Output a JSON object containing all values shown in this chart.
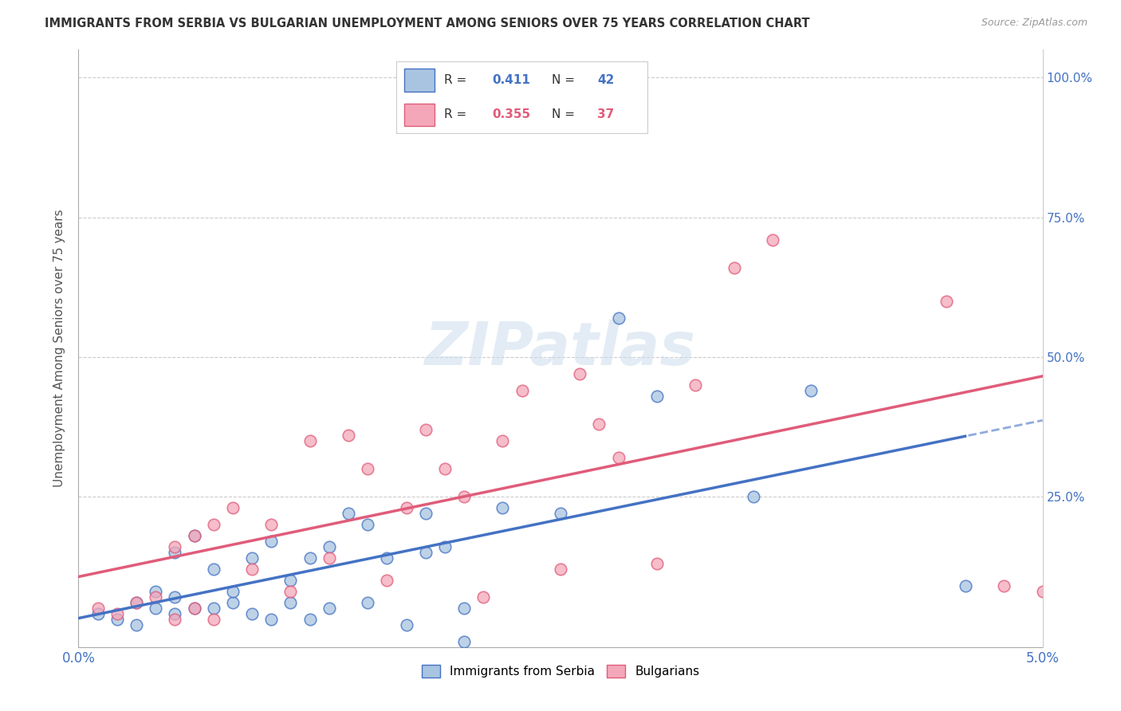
{
  "title": "IMMIGRANTS FROM SERBIA VS BULGARIAN UNEMPLOYMENT AMONG SENIORS OVER 75 YEARS CORRELATION CHART",
  "source": "Source: ZipAtlas.com",
  "ylabel": "Unemployment Among Seniors over 75 years",
  "xlim": [
    0.0,
    0.05
  ],
  "ylim": [
    -0.02,
    1.05
  ],
  "ytick_vals": [
    0.0,
    0.25,
    0.5,
    0.75,
    1.0
  ],
  "ytick_labels": [
    "",
    "25.0%",
    "50.0%",
    "75.0%",
    "100.0%"
  ],
  "xtick_vals": [
    0.0,
    0.01,
    0.02,
    0.03,
    0.04,
    0.05
  ],
  "xtick_labels": [
    "0.0%",
    "",
    "",
    "",
    "",
    "5.0%"
  ],
  "legend_r1": "0.411",
  "legend_n1": "42",
  "legend_r2": "0.355",
  "legend_n2": "37",
  "watermark": "ZIPatlas",
  "serbia_color": "#a8c4e0",
  "serbian_line_color": "#4472c4",
  "bulgarian_color": "#f4a7b9",
  "bulgarian_line_color": "#e05c7a",
  "serbia_scatter_x": [
    0.001,
    0.002,
    0.003,
    0.003,
    0.004,
    0.004,
    0.005,
    0.005,
    0.005,
    0.006,
    0.006,
    0.007,
    0.007,
    0.008,
    0.008,
    0.009,
    0.009,
    0.01,
    0.01,
    0.011,
    0.011,
    0.012,
    0.012,
    0.013,
    0.013,
    0.014,
    0.015,
    0.015,
    0.016,
    0.017,
    0.018,
    0.018,
    0.019,
    0.02,
    0.02,
    0.022,
    0.025,
    0.028,
    0.03,
    0.035,
    0.038,
    0.046
  ],
  "serbia_scatter_y": [
    0.04,
    0.03,
    0.06,
    0.02,
    0.05,
    0.08,
    0.04,
    0.07,
    0.15,
    0.05,
    0.18,
    0.05,
    0.12,
    0.06,
    0.08,
    0.04,
    0.14,
    0.03,
    0.17,
    0.06,
    0.1,
    0.03,
    0.14,
    0.05,
    0.16,
    0.22,
    0.06,
    0.2,
    0.14,
    0.02,
    0.22,
    0.15,
    0.16,
    -0.01,
    0.05,
    0.23,
    0.22,
    0.57,
    0.43,
    0.25,
    0.44,
    0.09
  ],
  "bulgarian_scatter_x": [
    0.001,
    0.002,
    0.003,
    0.004,
    0.005,
    0.005,
    0.006,
    0.006,
    0.007,
    0.007,
    0.008,
    0.009,
    0.01,
    0.011,
    0.012,
    0.013,
    0.014,
    0.015,
    0.016,
    0.017,
    0.018,
    0.019,
    0.02,
    0.021,
    0.022,
    0.023,
    0.025,
    0.026,
    0.027,
    0.028,
    0.03,
    0.032,
    0.034,
    0.036,
    0.045,
    0.048,
    0.05
  ],
  "bulgarian_scatter_y": [
    0.05,
    0.04,
    0.06,
    0.07,
    0.03,
    0.16,
    0.05,
    0.18,
    0.03,
    0.2,
    0.23,
    0.12,
    0.2,
    0.08,
    0.35,
    0.14,
    0.36,
    0.3,
    0.1,
    0.23,
    0.37,
    0.3,
    0.25,
    0.07,
    0.35,
    0.44,
    0.12,
    0.47,
    0.38,
    0.32,
    0.13,
    0.45,
    0.66,
    0.71,
    0.6,
    0.09,
    0.08
  ]
}
